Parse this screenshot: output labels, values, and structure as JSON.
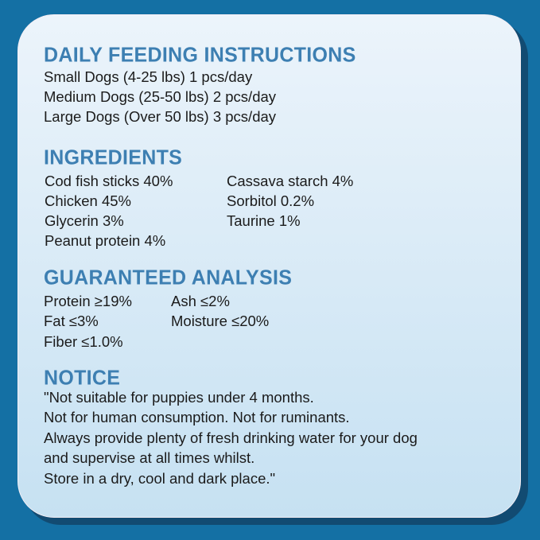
{
  "feeding": {
    "title": "DAILY FEEDING INSTRUCTIONS",
    "lines": [
      "Small Dogs (4-25 lbs) 1 pcs/day",
      "Medium Dogs (25-50 lbs) 2 pcs/day",
      "Large Dogs (Over 50 lbs) 3 pcs/day"
    ]
  },
  "ingredients": {
    "title": "INGREDIENTS",
    "col1": [
      "Cod fish sticks 40%",
      "Chicken 45%",
      "Glycerin 3%",
      "Peanut protein 4%"
    ],
    "col2": [
      "Cassava starch 4%",
      "Sorbitol 0.2%",
      "Taurine 1%"
    ]
  },
  "analysis": {
    "title": "GUARANTEED ANALYSIS",
    "col1": [
      "Protein ≥19%",
      "Fat ≤3%",
      "Fiber ≤1.0%"
    ],
    "col2": [
      "Ash ≤2%",
      "Moisture ≤20%"
    ]
  },
  "notice": {
    "title": "NOTICE",
    "lines": [
      "\"Not suitable for puppies under 4 months.",
      "Not for human consumption. Not for ruminants.",
      "Always provide plenty of fresh drinking water for your dog",
      "and supervise at all times whilst.",
      "Store in a dry, cool and dark place.\""
    ]
  },
  "colors": {
    "background": "#1470a4",
    "heading": "#3d7fb2",
    "shadow": "#124b72"
  }
}
